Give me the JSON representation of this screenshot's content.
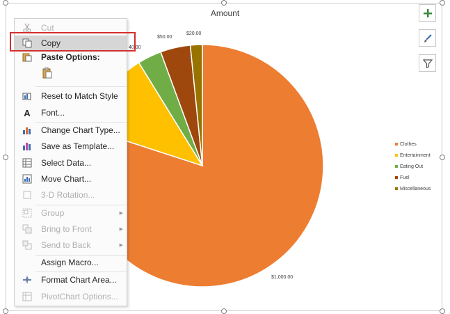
{
  "chart": {
    "title": "Amount",
    "chart_data": {
      "type": "pie",
      "title": "Amount",
      "categories": [
        "Clothes",
        "Entertainment",
        "Eating Out",
        "Fuel",
        "Miscellaneous"
      ],
      "values": [
        1000,
        140,
        40,
        50,
        20
      ],
      "colors": [
        "#ED7D31",
        "#FFC000",
        "#70AD47",
        "#9E480E",
        "#997300"
      ],
      "data_labels": [
        "$1,000.00",
        "",
        "40.00",
        "$50.00",
        "$20.00"
      ],
      "legend_position": "right"
    },
    "legend": [
      "Clothes",
      "Entertainment",
      "Eating Out",
      "Fuel",
      "Miscellaneous"
    ]
  },
  "side_buttons": [
    {
      "name": "chart-elements-button",
      "icon": "plus-icon"
    },
    {
      "name": "chart-styles-button",
      "icon": "brush-icon"
    },
    {
      "name": "chart-filters-button",
      "icon": "filter-icon"
    }
  ],
  "context_menu": {
    "cut": "Cut",
    "copy": "Copy",
    "paste_options": "Paste Options:",
    "reset": "Reset to Match Style",
    "font": "Font...",
    "change_chart_type": "Change Chart Type...",
    "save_as_template": "Save as Template...",
    "select_data": "Select Data...",
    "move_chart": "Move Chart...",
    "rotation": "3-D Rotation...",
    "group": "Group",
    "bring_to_front": "Bring to Front",
    "send_to_back": "Send to Back",
    "assign_macro": "Assign Macro...",
    "format_chart_area": "Format Chart Area...",
    "pivotchart_options": "PivotChart Options..."
  },
  "colors": {
    "highlight_outline": "#d32f2f"
  }
}
